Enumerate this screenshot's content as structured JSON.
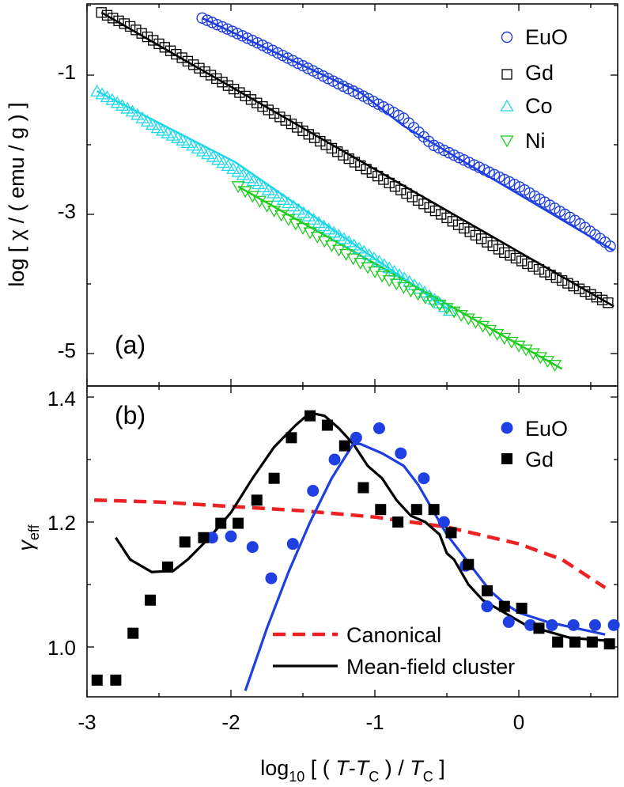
{
  "chart_data": [
    {
      "panel_label": "(a)",
      "type": "scatter",
      "title": "",
      "xlabel": "",
      "ylabel": "log [ χ / ( emu / g ) ]",
      "xlim": [
        -3,
        0.7
      ],
      "ylim": [
        -5.5,
        0.9
      ],
      "ytick_labels": [
        "-1",
        "-3",
        "-5"
      ],
      "grid": false,
      "legend_position": "top-right",
      "series": [
        {
          "name": "EuO",
          "marker": "circle-open",
          "color": "#1f3fe0",
          "x": [
            -2.2,
            -2.0,
            -1.8,
            -1.6,
            -1.4,
            -1.2,
            -1.1,
            -0.9,
            -0.8,
            -0.6,
            -0.4,
            -0.2,
            0.0,
            0.2,
            0.4,
            0.6,
            0.66
          ],
          "y": [
            -0.18,
            -0.36,
            -0.55,
            -0.76,
            -0.97,
            -1.18,
            -1.28,
            -1.5,
            -1.62,
            -2.0,
            -2.2,
            -2.4,
            -2.6,
            -2.85,
            -3.1,
            -3.4,
            -3.5
          ]
        },
        {
          "name": "Gd",
          "marker": "square-open",
          "color": "#000000",
          "x": [
            -2.9,
            -2.7,
            -2.5,
            -2.3,
            -2.1,
            -1.9,
            -1.7,
            -1.5,
            -1.3,
            -1.1,
            -0.9,
            -0.7,
            -0.5,
            -0.3,
            -0.1,
            0.1,
            0.3,
            0.5,
            0.65
          ],
          "y": [
            -0.1,
            -0.3,
            -0.55,
            -0.8,
            -1.05,
            -1.3,
            -1.55,
            -1.8,
            -2.05,
            -2.3,
            -2.55,
            -2.8,
            -3.05,
            -3.3,
            -3.55,
            -3.75,
            -3.95,
            -4.15,
            -4.3
          ]
        },
        {
          "name": "Co",
          "marker": "triangle-up-open",
          "color": "#20d8e8",
          "x": [
            -2.93,
            -2.7,
            -2.5,
            -2.3,
            -2.1,
            -1.9,
            -1.7,
            -1.5,
            -1.3,
            -1.1,
            -0.9,
            -0.7,
            -0.48
          ],
          "y": [
            -1.23,
            -1.5,
            -1.77,
            -1.97,
            -2.2,
            -2.45,
            -2.7,
            -2.97,
            -3.24,
            -3.5,
            -3.77,
            -4.05,
            -4.38
          ]
        },
        {
          "name": "Ni",
          "marker": "triangle-down-open",
          "color": "#22cc22",
          "x": [
            -1.95,
            -1.7,
            -1.5,
            -1.3,
            -1.1,
            -0.9,
            -0.7,
            -0.5,
            -0.3,
            -0.1,
            0.1,
            0.28
          ],
          "y": [
            -2.6,
            -2.95,
            -3.2,
            -3.45,
            -3.7,
            -3.95,
            -4.15,
            -4.35,
            -4.55,
            -4.78,
            -5.0,
            -5.2
          ]
        }
      ],
      "fits": [
        {
          "color": "#1f3fe0",
          "x": [
            -2.2,
            -1.1,
            -0.8,
            0.66
          ],
          "y": [
            -0.18,
            -1.25,
            -1.73,
            -3.52
          ]
        },
        {
          "color": "#000000",
          "x": [
            -2.9,
            0.66
          ],
          "y": [
            -0.1,
            -4.32
          ]
        },
        {
          "color": "#20d8e8",
          "x": [
            -2.93,
            -1.97,
            -0.48
          ],
          "y": [
            -1.23,
            -2.25,
            -4.38
          ]
        },
        {
          "color": "#22cc22",
          "x": [
            -1.95,
            0.3
          ],
          "y": [
            -2.6,
            -5.22
          ]
        }
      ]
    },
    {
      "panel_label": "(b)",
      "type": "scatter",
      "title": "",
      "xlabel": "log10 [ ( T-TC ) / TC ]",
      "ylabel": "γeff",
      "xlim": [
        -3,
        0.7
      ],
      "ylim": [
        0.9,
        1.42
      ],
      "xtick_labels": [
        "-3",
        "-2",
        "-1",
        "0"
      ],
      "ytick_labels": [
        "1.0",
        "1.2",
        "1.4"
      ],
      "grid": false,
      "legend_position": "top-right",
      "series": [
        {
          "name": "EuO",
          "marker": "circle-filled",
          "color": "#1f3fe0",
          "x": [
            -2.13,
            -2.0,
            -1.85,
            -1.72,
            -1.57,
            -1.43,
            -1.28,
            -1.13,
            -0.97,
            -0.82,
            -0.66,
            -0.52,
            -0.37,
            -0.22,
            -0.07,
            0.08,
            0.23,
            0.38,
            0.53,
            0.66
          ],
          "y": [
            1.175,
            1.177,
            1.16,
            1.11,
            1.165,
            1.25,
            1.3,
            1.335,
            1.35,
            1.31,
            1.27,
            1.2,
            1.13,
            1.065,
            1.04,
            1.035,
            1.035,
            1.035,
            1.035,
            1.035
          ]
        },
        {
          "name": "Gd",
          "marker": "square-filled",
          "color": "#000000",
          "x": [
            -2.93,
            -2.8,
            -2.68,
            -2.56,
            -2.44,
            -2.32,
            -2.19,
            -2.07,
            -1.95,
            -1.82,
            -1.7,
            -1.58,
            -1.45,
            -1.33,
            -1.21,
            -1.08,
            -0.96,
            -0.84,
            -0.71,
            -0.59,
            -0.47,
            -0.35,
            -0.22,
            -0.1,
            0.02,
            0.14,
            0.27,
            0.39,
            0.51,
            0.63
          ],
          "y": [
            0.947,
            0.947,
            1.022,
            1.075,
            1.128,
            1.168,
            1.175,
            1.198,
            1.198,
            1.235,
            1.27,
            1.335,
            1.37,
            1.355,
            1.322,
            1.255,
            1.22,
            1.2,
            1.22,
            1.22,
            1.183,
            1.132,
            1.09,
            1.065,
            1.062,
            1.03,
            1.008,
            1.008,
            1.008,
            1.005
          ]
        }
      ],
      "lines": [
        {
          "name": "Canonical",
          "style": "dashed",
          "color": "#ee2222",
          "x": [
            -2.95,
            -2.5,
            -2.0,
            -1.5,
            -1.0,
            -0.5,
            0.0,
            0.3,
            0.6
          ],
          "y": [
            1.235,
            1.232,
            1.225,
            1.218,
            1.208,
            1.192,
            1.165,
            1.14,
            1.095
          ]
        },
        {
          "name": "Mean-field cluster",
          "style": "solid",
          "color": "#000000",
          "x": [
            -2.8,
            -2.7,
            -2.55,
            -2.4,
            -2.3,
            -2.15,
            -2.0,
            -1.85,
            -1.7,
            -1.55,
            -1.45,
            -1.35,
            -1.25,
            -1.15,
            -1.05,
            -0.95,
            -0.85,
            -0.75,
            -0.65,
            -0.55,
            -0.5,
            -0.45,
            -0.35,
            -0.25,
            -0.1,
            0.05,
            0.2,
            0.35,
            0.5,
            0.62
          ],
          "y": [
            1.175,
            1.14,
            1.12,
            1.122,
            1.14,
            1.175,
            1.215,
            1.27,
            1.32,
            1.355,
            1.375,
            1.37,
            1.35,
            1.325,
            1.29,
            1.27,
            1.235,
            1.21,
            1.2,
            1.18,
            1.15,
            1.14,
            1.1,
            1.075,
            1.055,
            1.035,
            1.025,
            1.015,
            1.012,
            1.01
          ]
        },
        {
          "name": "",
          "style": "solid",
          "color": "#1f3fe0",
          "x": [
            -1.9,
            -1.75,
            -1.6,
            -1.45,
            -1.3,
            -1.15,
            -1.1,
            -0.95,
            -0.8,
            -0.7,
            -0.6,
            -0.5,
            -0.4,
            -0.3,
            -0.2,
            -0.1,
            0.0,
            0.2,
            0.4,
            0.6
          ],
          "y": [
            0.93,
            1.03,
            1.12,
            1.2,
            1.27,
            1.325,
            1.325,
            1.31,
            1.29,
            1.26,
            1.22,
            1.18,
            1.15,
            1.12,
            1.09,
            1.07,
            1.055,
            1.04,
            1.03,
            1.02
          ]
        }
      ]
    }
  ]
}
